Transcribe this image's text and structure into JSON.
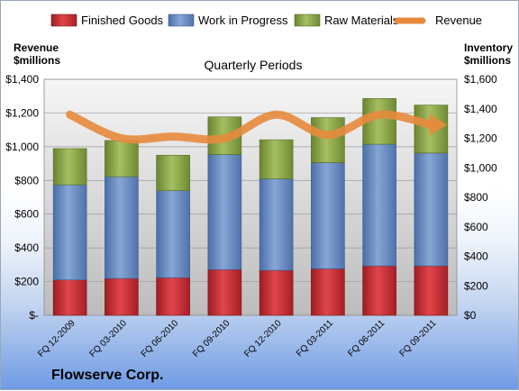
{
  "chart_data": {
    "type": "bar",
    "stacked": true,
    "subtitle": "Quarterly Periods",
    "footer_title": "Flowserve Corp.",
    "left_axis_title": [
      "Revenue",
      "$millions"
    ],
    "right_axis_title": [
      "Inventory",
      "$millions"
    ],
    "left_ticks": [
      "$-",
      "$200",
      "$400",
      "$600",
      "$800",
      "$1,000",
      "$1,200",
      "$1,400"
    ],
    "right_ticks": [
      "$0",
      "$200",
      "$400",
      "$600",
      "$800",
      "$1,000",
      "$1,200",
      "$1,400",
      "$1,600"
    ],
    "left_ylim": [
      0,
      1400
    ],
    "right_ylim": [
      0,
      1600
    ],
    "categories": [
      "FQ 12-2009",
      "FQ 03-2010",
      "FQ 06-2010",
      "FQ 09-2010",
      "FQ 12-2010",
      "FQ 03-2011",
      "FQ 06-2011",
      "FQ 09-2011"
    ],
    "series": [
      {
        "name": "Finished Goods",
        "axis": "right",
        "color": "#c0282f",
        "values": [
          240,
          250,
          255,
          310,
          305,
          315,
          335,
          335
        ]
      },
      {
        "name": "Work in Progress",
        "axis": "right",
        "color": "#5b80b8",
        "values": [
          645,
          690,
          590,
          780,
          620,
          720,
          825,
          765
        ]
      },
      {
        "name": "Raw Materials",
        "axis": "right",
        "color": "#7e9a3b",
        "values": [
          245,
          245,
          240,
          255,
          265,
          305,
          310,
          325
        ]
      },
      {
        "name": "Revenue",
        "axis": "left",
        "type": "line",
        "color": "#e88a3c",
        "values": [
          1190,
          1050,
          1060,
          1050,
          1190,
          1070,
          1190,
          1130
        ]
      }
    ],
    "grid": true,
    "legend_position": "top"
  }
}
